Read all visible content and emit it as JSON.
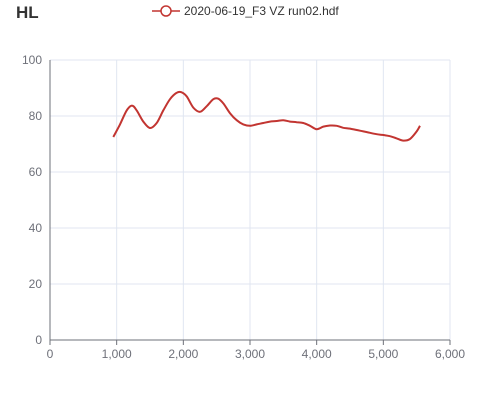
{
  "chart_data": {
    "type": "line",
    "title": "HL",
    "legend": {
      "placement": "top-center"
    },
    "grid": true,
    "xlim": [
      0,
      6000
    ],
    "ylim": [
      0,
      100
    ],
    "x_ticks": [
      0,
      1000,
      2000,
      3000,
      4000,
      5000,
      6000
    ],
    "x_tick_labels": [
      "0",
      "1,000",
      "2,000",
      "3,000",
      "4,000",
      "5,000",
      "6,000"
    ],
    "y_ticks": [
      0,
      20,
      40,
      60,
      80,
      100
    ],
    "y_tick_labels": [
      "0",
      "20",
      "40",
      "60",
      "80",
      "100"
    ],
    "series": [
      {
        "name": "2020-06-19_F3 VZ run02.hdf",
        "color": "#c23531",
        "x": [
          950,
          1050,
          1150,
          1230,
          1300,
          1400,
          1500,
          1600,
          1700,
          1800,
          1900,
          1970,
          2050,
          2150,
          2250,
          2350,
          2450,
          2520,
          2600,
          2700,
          2800,
          2900,
          3000,
          3100,
          3200,
          3300,
          3400,
          3500,
          3600,
          3700,
          3800,
          3900,
          4000,
          4100,
          4200,
          4300,
          4400,
          4500,
          4600,
          4700,
          4800,
          4900,
          5000,
          5100,
          5200,
          5300,
          5400,
          5500,
          5550
        ],
        "y": [
          72.5,
          77,
          82,
          83.7,
          82,
          78,
          75.7,
          77.5,
          82,
          86,
          88.3,
          88.5,
          87,
          83,
          81.5,
          83.5,
          86,
          86.2,
          84.5,
          81,
          78.5,
          77,
          76.5,
          77,
          77.5,
          78,
          78.2,
          78.5,
          78,
          77.8,
          77.5,
          76.5,
          75.3,
          76.2,
          76.6,
          76.5,
          75.8,
          75.5,
          75,
          74.5,
          74,
          73.5,
          73.2,
          72.8,
          72,
          71.2,
          71.8,
          74.5,
          76.5
        ]
      }
    ]
  }
}
